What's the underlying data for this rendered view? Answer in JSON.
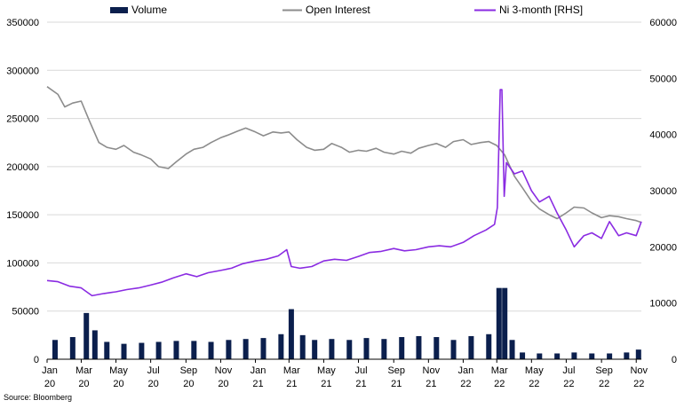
{
  "chart_data": {
    "type": "line",
    "title": "",
    "source": "Source: Bloomberg",
    "legend": {
      "position": "top",
      "items": [
        {
          "name": "Volume",
          "kind": "bar",
          "color": "#0b1f4d"
        },
        {
          "name": "Open Interest",
          "kind": "line",
          "color": "#8c8c8c"
        },
        {
          "name": "Ni 3-month [RHS]",
          "kind": "line",
          "color": "#8a2be2"
        }
      ]
    },
    "x_axis": {
      "range": [
        "2020-01-01",
        "2022-11-10"
      ],
      "ticks": [
        {
          "date": "2020-01-01",
          "month": "Jan",
          "year": "20"
        },
        {
          "date": "2020-03-01",
          "month": "Mar",
          "year": "20"
        },
        {
          "date": "2020-05-01",
          "month": "May",
          "year": "20"
        },
        {
          "date": "2020-07-01",
          "month": "Jul",
          "year": "20"
        },
        {
          "date": "2020-09-01",
          "month": "Sep",
          "year": "20"
        },
        {
          "date": "2020-11-01",
          "month": "Nov",
          "year": "20"
        },
        {
          "date": "2021-01-01",
          "month": "Jan",
          "year": "21"
        },
        {
          "date": "2021-03-01",
          "month": "Mar",
          "year": "21"
        },
        {
          "date": "2021-05-01",
          "month": "May",
          "year": "21"
        },
        {
          "date": "2021-07-01",
          "month": "Jul",
          "year": "21"
        },
        {
          "date": "2021-09-01",
          "month": "Sep",
          "year": "21"
        },
        {
          "date": "2021-11-01",
          "month": "Nov",
          "year": "21"
        },
        {
          "date": "2022-01-01",
          "month": "Jan",
          "year": "22"
        },
        {
          "date": "2022-03-01",
          "month": "Mar",
          "year": "22"
        },
        {
          "date": "2022-05-01",
          "month": "May",
          "year": "22"
        },
        {
          "date": "2022-07-01",
          "month": "Jul",
          "year": "22"
        },
        {
          "date": "2022-09-01",
          "month": "Sep",
          "year": "22"
        },
        {
          "date": "2022-11-01",
          "month": "Nov",
          "year": "22"
        }
      ]
    },
    "y_left": {
      "min": 0,
      "max": 350000,
      "ticks": [
        "0",
        "50000",
        "100000",
        "150000",
        "200000",
        "250000",
        "300000",
        "350000"
      ]
    },
    "y_right": {
      "min": 0,
      "max": 60000,
      "ticks": [
        "0",
        "10000",
        "20000",
        "30000",
        "40000",
        "50000",
        "60000"
      ]
    },
    "grid": true,
    "series": [
      {
        "name": "Open Interest",
        "axis": "left",
        "color": "#8c8c8c",
        "points": [
          [
            "2020-01-01",
            283000
          ],
          [
            "2020-01-20",
            275000
          ],
          [
            "2020-02-01",
            262000
          ],
          [
            "2020-02-15",
            266000
          ],
          [
            "2020-03-01",
            268000
          ],
          [
            "2020-03-15",
            248000
          ],
          [
            "2020-04-01",
            225000
          ],
          [
            "2020-04-15",
            220000
          ],
          [
            "2020-05-01",
            218000
          ],
          [
            "2020-05-15",
            222000
          ],
          [
            "2020-06-01",
            215000
          ],
          [
            "2020-06-15",
            212000
          ],
          [
            "2020-07-01",
            208000
          ],
          [
            "2020-07-15",
            200000
          ],
          [
            "2020-08-01",
            198000
          ],
          [
            "2020-08-15",
            205000
          ],
          [
            "2020-09-01",
            213000
          ],
          [
            "2020-09-15",
            218000
          ],
          [
            "2020-10-01",
            220000
          ],
          [
            "2020-10-15",
            225000
          ],
          [
            "2020-11-01",
            230000
          ],
          [
            "2020-11-15",
            233000
          ],
          [
            "2020-12-01",
            237000
          ],
          [
            "2020-12-15",
            240000
          ],
          [
            "2021-01-01",
            236000
          ],
          [
            "2021-01-15",
            232000
          ],
          [
            "2021-02-01",
            236000
          ],
          [
            "2021-02-15",
            235000
          ],
          [
            "2021-03-01",
            236000
          ],
          [
            "2021-03-15",
            228000
          ],
          [
            "2021-04-01",
            220000
          ],
          [
            "2021-04-15",
            217000
          ],
          [
            "2021-05-01",
            218000
          ],
          [
            "2021-05-15",
            224000
          ],
          [
            "2021-06-01",
            220000
          ],
          [
            "2021-06-15",
            215000
          ],
          [
            "2021-07-01",
            217000
          ],
          [
            "2021-07-15",
            216000
          ],
          [
            "2021-08-01",
            219000
          ],
          [
            "2021-08-15",
            215000
          ],
          [
            "2021-09-01",
            213000
          ],
          [
            "2021-09-15",
            216000
          ],
          [
            "2021-10-01",
            214000
          ],
          [
            "2021-10-15",
            219000
          ],
          [
            "2021-11-01",
            222000
          ],
          [
            "2021-11-15",
            224000
          ],
          [
            "2021-12-01",
            220000
          ],
          [
            "2021-12-15",
            226000
          ],
          [
            "2022-01-01",
            228000
          ],
          [
            "2022-01-15",
            223000
          ],
          [
            "2022-02-01",
            225000
          ],
          [
            "2022-02-15",
            226000
          ],
          [
            "2022-03-01",
            222000
          ],
          [
            "2022-03-15",
            212000
          ],
          [
            "2022-04-01",
            190000
          ],
          [
            "2022-04-15",
            178000
          ],
          [
            "2022-05-01",
            164000
          ],
          [
            "2022-05-15",
            156000
          ],
          [
            "2022-06-01",
            150000
          ],
          [
            "2022-06-15",
            146000
          ],
          [
            "2022-07-01",
            152000
          ],
          [
            "2022-07-15",
            158000
          ],
          [
            "2022-08-01",
            157000
          ],
          [
            "2022-08-15",
            152000
          ],
          [
            "2022-09-01",
            147000
          ],
          [
            "2022-09-15",
            149000
          ],
          [
            "2022-10-01",
            148000
          ],
          [
            "2022-10-15",
            146000
          ],
          [
            "2022-11-01",
            144000
          ],
          [
            "2022-11-10",
            142000
          ]
        ]
      },
      {
        "name": "Ni 3-month [RHS]",
        "axis": "right",
        "color": "#8a2be2",
        "points": [
          [
            "2020-01-01",
            14000
          ],
          [
            "2020-01-20",
            13800
          ],
          [
            "2020-02-10",
            13000
          ],
          [
            "2020-03-01",
            12700
          ],
          [
            "2020-03-20",
            11300
          ],
          [
            "2020-04-10",
            11700
          ],
          [
            "2020-05-01",
            12000
          ],
          [
            "2020-05-20",
            12400
          ],
          [
            "2020-06-10",
            12700
          ],
          [
            "2020-07-01",
            13200
          ],
          [
            "2020-07-20",
            13700
          ],
          [
            "2020-08-10",
            14500
          ],
          [
            "2020-09-01",
            15200
          ],
          [
            "2020-09-20",
            14700
          ],
          [
            "2020-10-10",
            15400
          ],
          [
            "2020-11-01",
            15800
          ],
          [
            "2020-11-20",
            16200
          ],
          [
            "2020-12-10",
            17000
          ],
          [
            "2021-01-01",
            17500
          ],
          [
            "2021-01-20",
            17800
          ],
          [
            "2021-02-10",
            18400
          ],
          [
            "2021-02-25",
            19500
          ],
          [
            "2021-03-05",
            16500
          ],
          [
            "2021-03-20",
            16200
          ],
          [
            "2021-04-10",
            16500
          ],
          [
            "2021-05-01",
            17500
          ],
          [
            "2021-05-20",
            17800
          ],
          [
            "2021-06-10",
            17600
          ],
          [
            "2021-07-01",
            18300
          ],
          [
            "2021-07-20",
            19000
          ],
          [
            "2021-08-10",
            19200
          ],
          [
            "2021-09-01",
            19700
          ],
          [
            "2021-09-20",
            19300
          ],
          [
            "2021-10-10",
            19500
          ],
          [
            "2021-11-01",
            20000
          ],
          [
            "2021-11-20",
            20200
          ],
          [
            "2021-12-10",
            20000
          ],
          [
            "2022-01-01",
            20800
          ],
          [
            "2022-01-20",
            22000
          ],
          [
            "2022-02-10",
            23000
          ],
          [
            "2022-02-25",
            24000
          ],
          [
            "2022-03-02",
            27000
          ],
          [
            "2022-03-07",
            48000
          ],
          [
            "2022-03-10",
            48000
          ],
          [
            "2022-03-14",
            29000
          ],
          [
            "2022-03-18",
            35000
          ],
          [
            "2022-04-01",
            33000
          ],
          [
            "2022-04-15",
            33500
          ],
          [
            "2022-05-01",
            30000
          ],
          [
            "2022-05-15",
            28000
          ],
          [
            "2022-06-01",
            29000
          ],
          [
            "2022-06-15",
            26000
          ],
          [
            "2022-07-01",
            23000
          ],
          [
            "2022-07-15",
            20000
          ],
          [
            "2022-08-01",
            22000
          ],
          [
            "2022-08-15",
            22500
          ],
          [
            "2022-09-01",
            21500
          ],
          [
            "2022-09-15",
            24500
          ],
          [
            "2022-10-01",
            22000
          ],
          [
            "2022-10-15",
            22500
          ],
          [
            "2022-11-01",
            22000
          ],
          [
            "2022-11-10",
            24500
          ]
        ]
      },
      {
        "name": "Volume",
        "axis": "left",
        "type": "bar",
        "color": "#0b1f4d",
        "points": [
          [
            "2020-01-15",
            20000
          ],
          [
            "2020-02-15",
            23000
          ],
          [
            "2020-03-10",
            48000
          ],
          [
            "2020-03-25",
            30000
          ],
          [
            "2020-04-15",
            18000
          ],
          [
            "2020-05-15",
            16000
          ],
          [
            "2020-06-15",
            17000
          ],
          [
            "2020-07-15",
            18000
          ],
          [
            "2020-08-15",
            19000
          ],
          [
            "2020-09-15",
            19000
          ],
          [
            "2020-10-15",
            18000
          ],
          [
            "2020-11-15",
            20000
          ],
          [
            "2020-12-15",
            21000
          ],
          [
            "2021-01-15",
            22000
          ],
          [
            "2021-02-15",
            26000
          ],
          [
            "2021-03-05",
            52000
          ],
          [
            "2021-03-25",
            25000
          ],
          [
            "2021-04-15",
            20000
          ],
          [
            "2021-05-15",
            21000
          ],
          [
            "2021-06-15",
            20000
          ],
          [
            "2021-07-15",
            22000
          ],
          [
            "2021-08-15",
            21000
          ],
          [
            "2021-09-15",
            23000
          ],
          [
            "2021-10-15",
            24000
          ],
          [
            "2021-11-15",
            23000
          ],
          [
            "2021-12-15",
            20000
          ],
          [
            "2022-01-15",
            24000
          ],
          [
            "2022-02-15",
            26000
          ],
          [
            "2022-03-05",
            74000
          ],
          [
            "2022-03-15",
            74000
          ],
          [
            "2022-03-28",
            20000
          ],
          [
            "2022-04-15",
            7000
          ],
          [
            "2022-05-15",
            6000
          ],
          [
            "2022-06-15",
            6000
          ],
          [
            "2022-07-15",
            7000
          ],
          [
            "2022-08-15",
            6000
          ],
          [
            "2022-09-15",
            6000
          ],
          [
            "2022-10-15",
            7000
          ],
          [
            "2022-11-05",
            10000
          ]
        ]
      }
    ]
  }
}
